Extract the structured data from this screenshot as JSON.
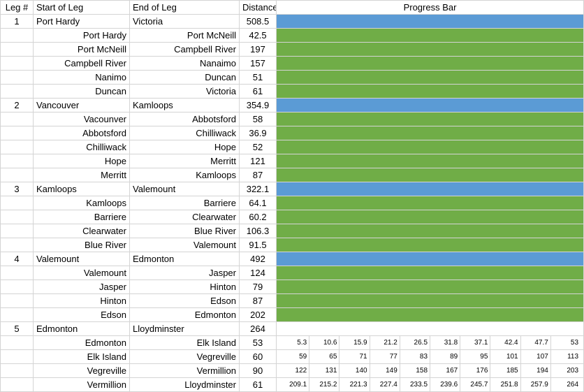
{
  "headers": {
    "leg": "Leg #",
    "start": "Start of Leg",
    "end": "End of Leg",
    "distance": "Distance",
    "progress": "Progress Bar"
  },
  "colors": {
    "summary_bar": "#5b9bd5",
    "segment_bar": "#70ad47",
    "grid": "#d4d4d4"
  },
  "legs": [
    {
      "num": "1",
      "start": "Port Hardy",
      "end": "Victoria",
      "distance": "508.5",
      "segments": [
        {
          "start": "Port Hardy",
          "end": "Port McNeill",
          "distance": "42.5"
        },
        {
          "start": "Port McNeill",
          "end": "Campbell River",
          "distance": "197"
        },
        {
          "start": "Campbell River",
          "end": "Nanaimo",
          "distance": "157"
        },
        {
          "start": "Nanimo",
          "end": "Duncan",
          "distance": "51"
        },
        {
          "start": "Duncan",
          "end": "Victoria",
          "distance": "61"
        }
      ]
    },
    {
      "num": "2",
      "start": "Vancouver",
      "end": "Kamloops",
      "distance": "354.9",
      "segments": [
        {
          "start": "Vacounver",
          "end": "Abbotsford",
          "distance": "58"
        },
        {
          "start": "Abbotsford",
          "end": "Chilliwack",
          "distance": "36.9"
        },
        {
          "start": "Chilliwack",
          "end": "Hope",
          "distance": "52"
        },
        {
          "start": "Hope",
          "end": "Merritt",
          "distance": "121"
        },
        {
          "start": "Merritt",
          "end": "Kamloops",
          "distance": "87"
        }
      ]
    },
    {
      "num": "3",
      "start": "Kamloops",
      "end": "Valemount",
      "distance": "322.1",
      "segments": [
        {
          "start": "Kamloops",
          "end": "Barriere",
          "distance": "64.1"
        },
        {
          "start": "Barriere",
          "end": "Clearwater",
          "distance": "60.2"
        },
        {
          "start": "Clearwater",
          "end": "Blue River",
          "distance": "106.3"
        },
        {
          "start": "Blue River",
          "end": "Valemount",
          "distance": "91.5"
        }
      ]
    },
    {
      "num": "4",
      "start": "Valemount",
      "end": "Edmonton",
      "distance": "492",
      "segments": [
        {
          "start": "Valemount",
          "end": "Jasper",
          "distance": "124"
        },
        {
          "start": "Jasper",
          "end": "Hinton",
          "distance": "79"
        },
        {
          "start": "Hinton",
          "end": "Edson",
          "distance": "87"
        },
        {
          "start": "Edson",
          "end": "Edmonton",
          "distance": "202"
        }
      ]
    },
    {
      "num": "5",
      "start": "Edmonton",
      "end": "Lloydminster",
      "distance": "264",
      "segments": [
        {
          "start": "Edmonton",
          "end": "Elk Island",
          "distance": "53",
          "steps": [
            "5.3",
            "10.6",
            "15.9",
            "21.2",
            "26.5",
            "31.8",
            "37.1",
            "42.4",
            "47.7",
            "53"
          ]
        },
        {
          "start": "Elk Island",
          "end": "Vegreville",
          "distance": "60",
          "steps": [
            "59",
            "65",
            "71",
            "77",
            "83",
            "89",
            "95",
            "101",
            "107",
            "113"
          ]
        },
        {
          "start": "Vegreville",
          "end": "Vermillion",
          "distance": "90",
          "steps": [
            "122",
            "131",
            "140",
            "149",
            "158",
            "167",
            "176",
            "185",
            "194",
            "203"
          ]
        },
        {
          "start": "Vermillion",
          "end": "Lloydminster",
          "distance": "61",
          "steps": [
            "209.1",
            "215.2",
            "221.3",
            "227.4",
            "233.5",
            "239.6",
            "245.7",
            "251.8",
            "257.9",
            "264"
          ]
        }
      ]
    }
  ]
}
